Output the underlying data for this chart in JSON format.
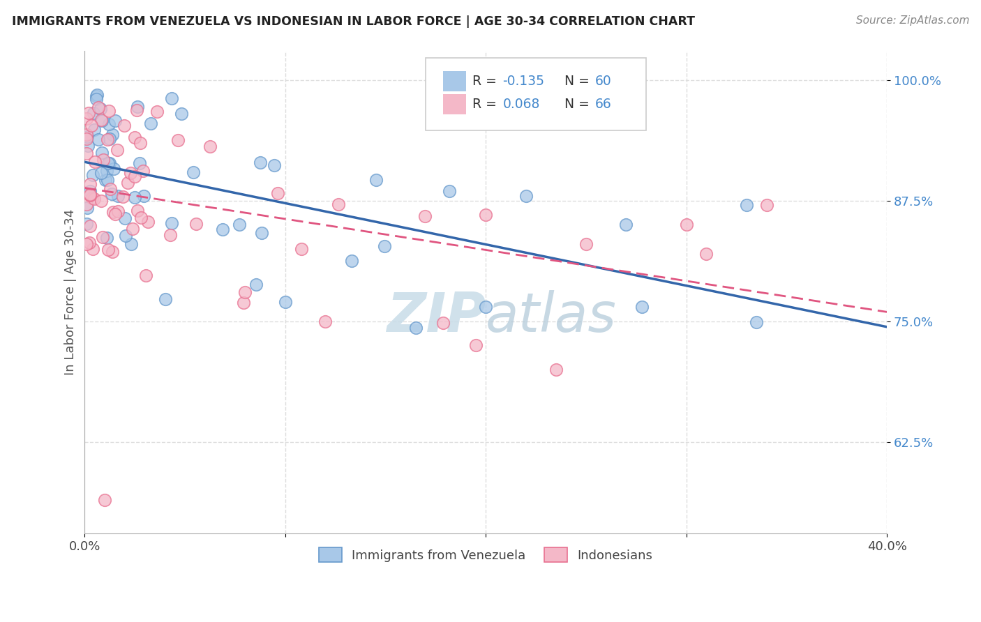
{
  "title": "IMMIGRANTS FROM VENEZUELA VS INDONESIAN IN LABOR FORCE | AGE 30-34 CORRELATION CHART",
  "source": "Source: ZipAtlas.com",
  "ylabel": "In Labor Force | Age 30-34",
  "legend_label1": "Immigrants from Venezuela",
  "legend_label2": "Indonesians",
  "xmin": 0.0,
  "xmax": 0.4,
  "ymin": 0.53,
  "ymax": 1.03,
  "yticks": [
    0.625,
    0.75,
    0.875,
    1.0
  ],
  "ytick_labels": [
    "62.5%",
    "75.0%",
    "87.5%",
    "100.0%"
  ],
  "color_venezuela": "#a8c8e8",
  "color_indonesia": "#f4b8c8",
  "edge_venezuela": "#6699cc",
  "edge_indonesia": "#e87090",
  "trendline_color_venezuela": "#3366aa",
  "trendline_color_indonesia": "#e05580",
  "background_color": "#ffffff",
  "watermark_color": "#d8e8f0",
  "legend_r1": "-0.135",
  "legend_n1": "60",
  "legend_r2": "0.068",
  "legend_n2": "66",
  "tick_color": "#4488cc",
  "grid_color": "#dddddd"
}
